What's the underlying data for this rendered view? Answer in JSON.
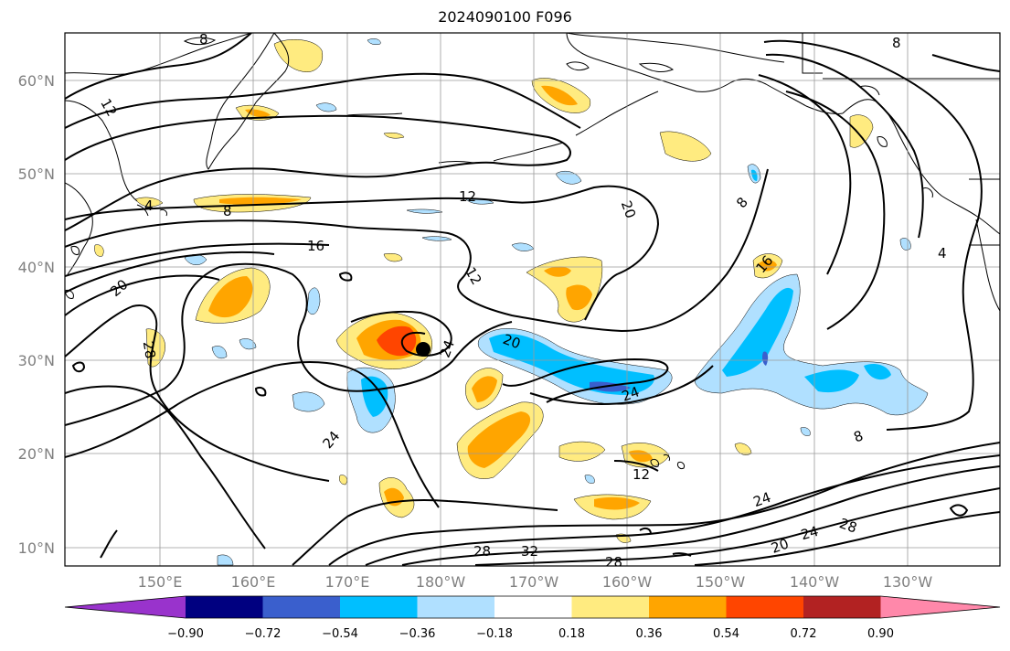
{
  "title": "2024090100 F096",
  "lat_labels": [
    "10°N",
    "20°N",
    "30°N",
    "40°N",
    "50°N",
    "60°N"
  ],
  "lon_labels": [
    "150°E",
    "160°E",
    "170°E",
    "180°W",
    "170°W",
    "160°W",
    "150°W",
    "140°W",
    "130°W"
  ],
  "colorbar": {
    "ticks": [
      "−0.90",
      "−0.72",
      "−0.54",
      "−0.36",
      "−0.18",
      "0.18",
      "0.36",
      "0.54",
      "0.72",
      "0.90"
    ],
    "colors": [
      "#9933cc",
      "#000080",
      "#3a5fcd",
      "#00bfff",
      "#b0e0ff",
      "#ffffff",
      "#ffeb80",
      "#ffa500",
      "#ff4500",
      "#b22222",
      "#ff88aa"
    ]
  },
  "contour_labels": [
    "8",
    "8",
    "12",
    "4",
    "8",
    "12",
    "20",
    "8",
    "16",
    "20",
    "28",
    "16",
    "4",
    "12",
    "24",
    "20",
    "24",
    "24",
    "8",
    "12",
    "24",
    "24",
    "28",
    "20",
    "28",
    "32",
    "28"
  ],
  "colors": {
    "contour": "#000000",
    "grid": "#9a9a9a",
    "frame": "#000000"
  }
}
